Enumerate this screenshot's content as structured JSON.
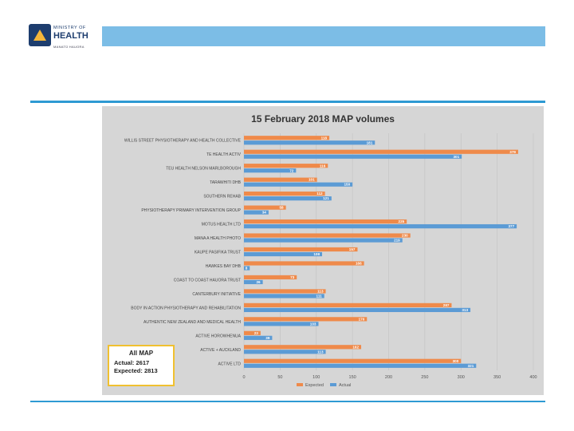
{
  "logo": {
    "line1": "MINISTRY OF",
    "line2": "HEALTH",
    "line3": "MANATŪ HAUORA"
  },
  "summary": {
    "title": "All MAP",
    "actual_label": "Actual:",
    "actual_value": "2617",
    "expected_label": "Expected:",
    "expected_value": "2813"
  },
  "chart_data": {
    "type": "bar",
    "orientation": "horizontal",
    "title": "15 February 2018 MAP volumes",
    "categories": [
      "WILLIS STREET PHYSIOTHERAPY AND HEALTH COLLECTIVE",
      "TE HEALTH ACTIV",
      "TEU HEALTH NELSON MARLBOROUGH",
      "TARAWHITI DHB",
      "SOUTHERN REHAB",
      "PHYSIOTHERAPY PRIMARY INTERVENTION GROUP",
      "MOTUS HEALTH LTD",
      "MANA A HEALTH PHOTO",
      "KAUPE PASIFIKA TRUST",
      "HAWKES BAY DHB",
      "COAST TO COAST HAUORA TRUST",
      "CANTERBURY INITIATIVE",
      "BODY IN ACTION PHYSIOTHERAPY AND REHABILITATION",
      "AUTHENTIC NEW ZEALAND AND MEDICAL HEALTH",
      "ACTIVE HOROWHENUA",
      "ACTIVE + AUCKLAND",
      "ACTIVE LTD"
    ],
    "series": [
      {
        "name": "Expected",
        "color": "#ef8a4a",
        "values": [
          118,
          379,
          116,
          101,
          112,
          58,
          225,
          230,
          157,
          166,
          73,
          113,
          287,
          170,
          23,
          162,
          300
        ]
      },
      {
        "name": "Actual",
        "color": "#5b9bd5",
        "values": [
          181,
          301,
          72,
          150,
          121,
          34,
          377,
          219,
          108,
          8,
          26,
          111,
          313,
          103,
          39,
          113,
          321
        ]
      }
    ],
    "xlim": [
      0,
      400
    ],
    "xticks": [
      0,
      50,
      100,
      150,
      200,
      250,
      300,
      350,
      400
    ],
    "legend": [
      "Expected",
      "Actual"
    ],
    "legend_position": "bottom",
    "grid": true
  }
}
